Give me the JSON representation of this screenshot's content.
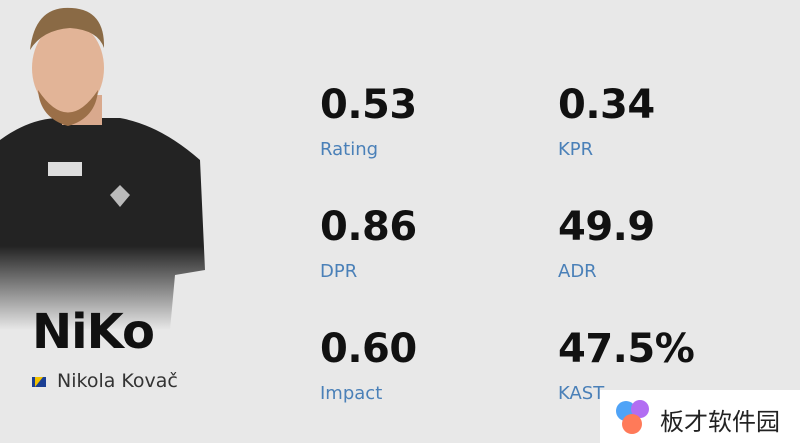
{
  "player": {
    "nickname": "NiKo",
    "name": "Nikola Kovač"
  },
  "stats": [
    {
      "value": "0.53",
      "label": "Rating"
    },
    {
      "value": "0.34",
      "label": "KPR"
    },
    {
      "value": "0.86",
      "label": "DPR"
    },
    {
      "value": "49.9",
      "label": "ADR"
    },
    {
      "value": "0.60",
      "label": "Impact"
    },
    {
      "value": "47.5%",
      "label": "KAST"
    }
  ],
  "watermark": "板才软件园"
}
